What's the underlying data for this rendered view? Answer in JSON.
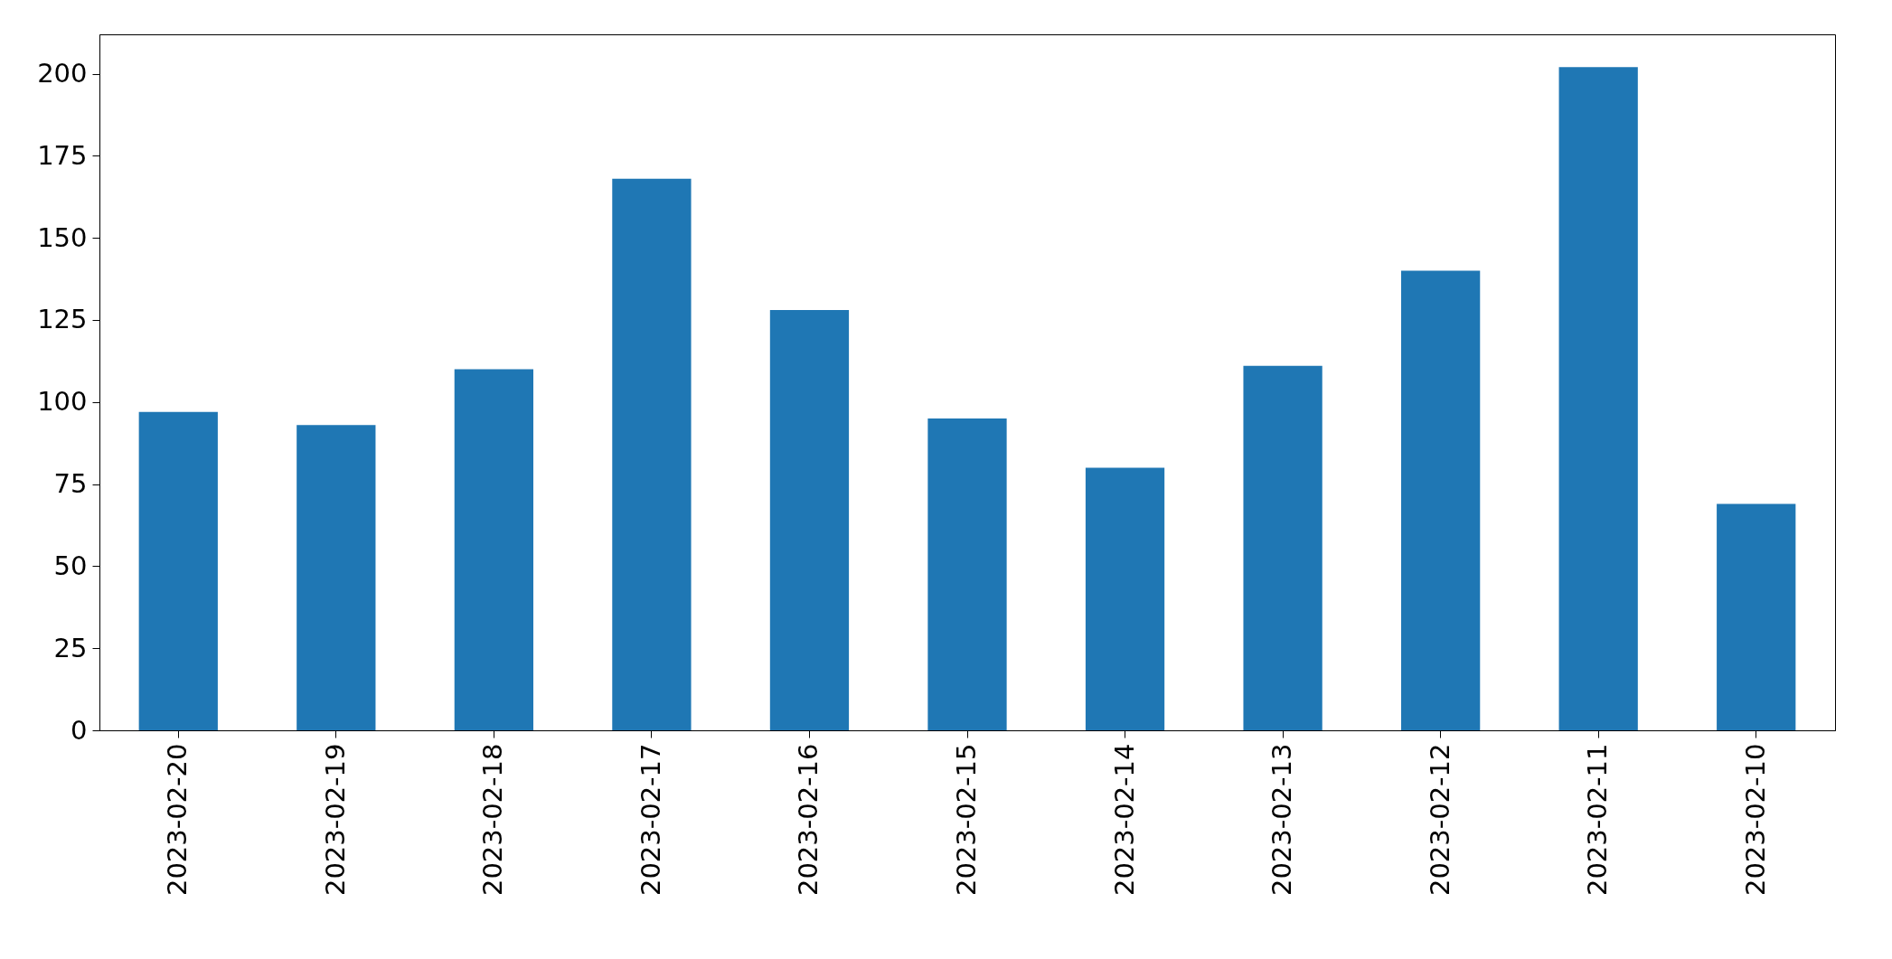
{
  "chart_data": {
    "type": "bar",
    "categories": [
      "2023-02-20",
      "2023-02-19",
      "2023-02-18",
      "2023-02-17",
      "2023-02-16",
      "2023-02-15",
      "2023-02-14",
      "2023-02-13",
      "2023-02-12",
      "2023-02-11",
      "2023-02-10"
    ],
    "values": [
      97,
      93,
      110,
      168,
      128,
      95,
      80,
      111,
      140,
      202,
      69
    ],
    "color": "#1f77b4",
    "ylim": [
      0,
      212
    ],
    "yticks": [
      0,
      25,
      50,
      75,
      100,
      125,
      150,
      175,
      200
    ],
    "grid": false
  }
}
